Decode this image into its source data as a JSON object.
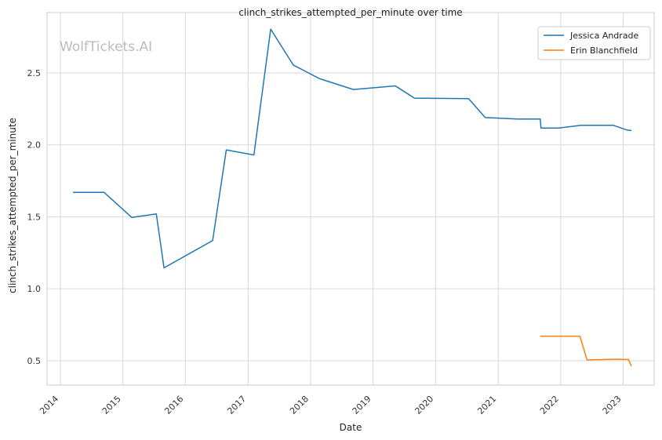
{
  "chart_data": {
    "type": "line",
    "title": "clinch_strikes_attempted_per_minute over time",
    "xlabel": "Date",
    "ylabel": "clinch_strikes_attempted_per_minute",
    "x_ticks": [
      "2014",
      "2015",
      "2016",
      "2017",
      "2018",
      "2019",
      "2020",
      "2021",
      "2022",
      "2023"
    ],
    "y_ticks": [
      "0.5",
      "1.0",
      "1.5",
      "2.0",
      "2.5"
    ],
    "xlim": [
      "2013-10-15",
      "2023-07-01"
    ],
    "ylim": [
      0.33,
      2.92
    ],
    "grid": true,
    "legend_position": "top-right",
    "watermark": "WolfTickets.AI",
    "series": [
      {
        "name": "Jessica Andrade",
        "color": "#1f77b4",
        "points": [
          [
            "2014-03-15",
            1.67
          ],
          [
            "2014-09-13",
            1.67
          ],
          [
            "2015-02-22",
            1.495
          ],
          [
            "2015-07-15",
            1.52
          ],
          [
            "2015-08-29",
            1.145
          ],
          [
            "2016-06-08",
            1.335
          ],
          [
            "2016-08-27",
            1.965
          ],
          [
            "2017-02-04",
            1.93
          ],
          [
            "2017-05-13",
            2.805
          ],
          [
            "2017-09-22",
            2.555
          ],
          [
            "2018-02-24",
            2.46
          ],
          [
            "2018-09-08",
            2.385
          ],
          [
            "2019-05-11",
            2.41
          ],
          [
            "2019-08-31",
            2.325
          ],
          [
            "2020-07-12",
            2.322
          ],
          [
            "2020-10-17",
            2.19
          ],
          [
            "2021-04-24",
            2.18
          ],
          [
            "2021-09-04",
            2.18
          ],
          [
            "2021-09-08",
            2.117
          ],
          [
            "2021-12-20",
            2.117
          ],
          [
            "2022-04-30",
            2.136
          ],
          [
            "2022-11-05",
            2.136
          ],
          [
            "2023-01-22",
            2.104
          ],
          [
            "2023-02-18",
            2.1
          ]
        ]
      },
      {
        "name": "Erin Blanchfield",
        "color": "#ff7f0e",
        "points": [
          [
            "2021-09-04",
            0.67
          ],
          [
            "2022-04-23",
            0.67
          ],
          [
            "2022-06-04",
            0.505
          ],
          [
            "2022-11-19",
            0.51
          ],
          [
            "2023-02-01",
            0.508
          ],
          [
            "2023-02-18",
            0.462
          ]
        ]
      }
    ]
  }
}
